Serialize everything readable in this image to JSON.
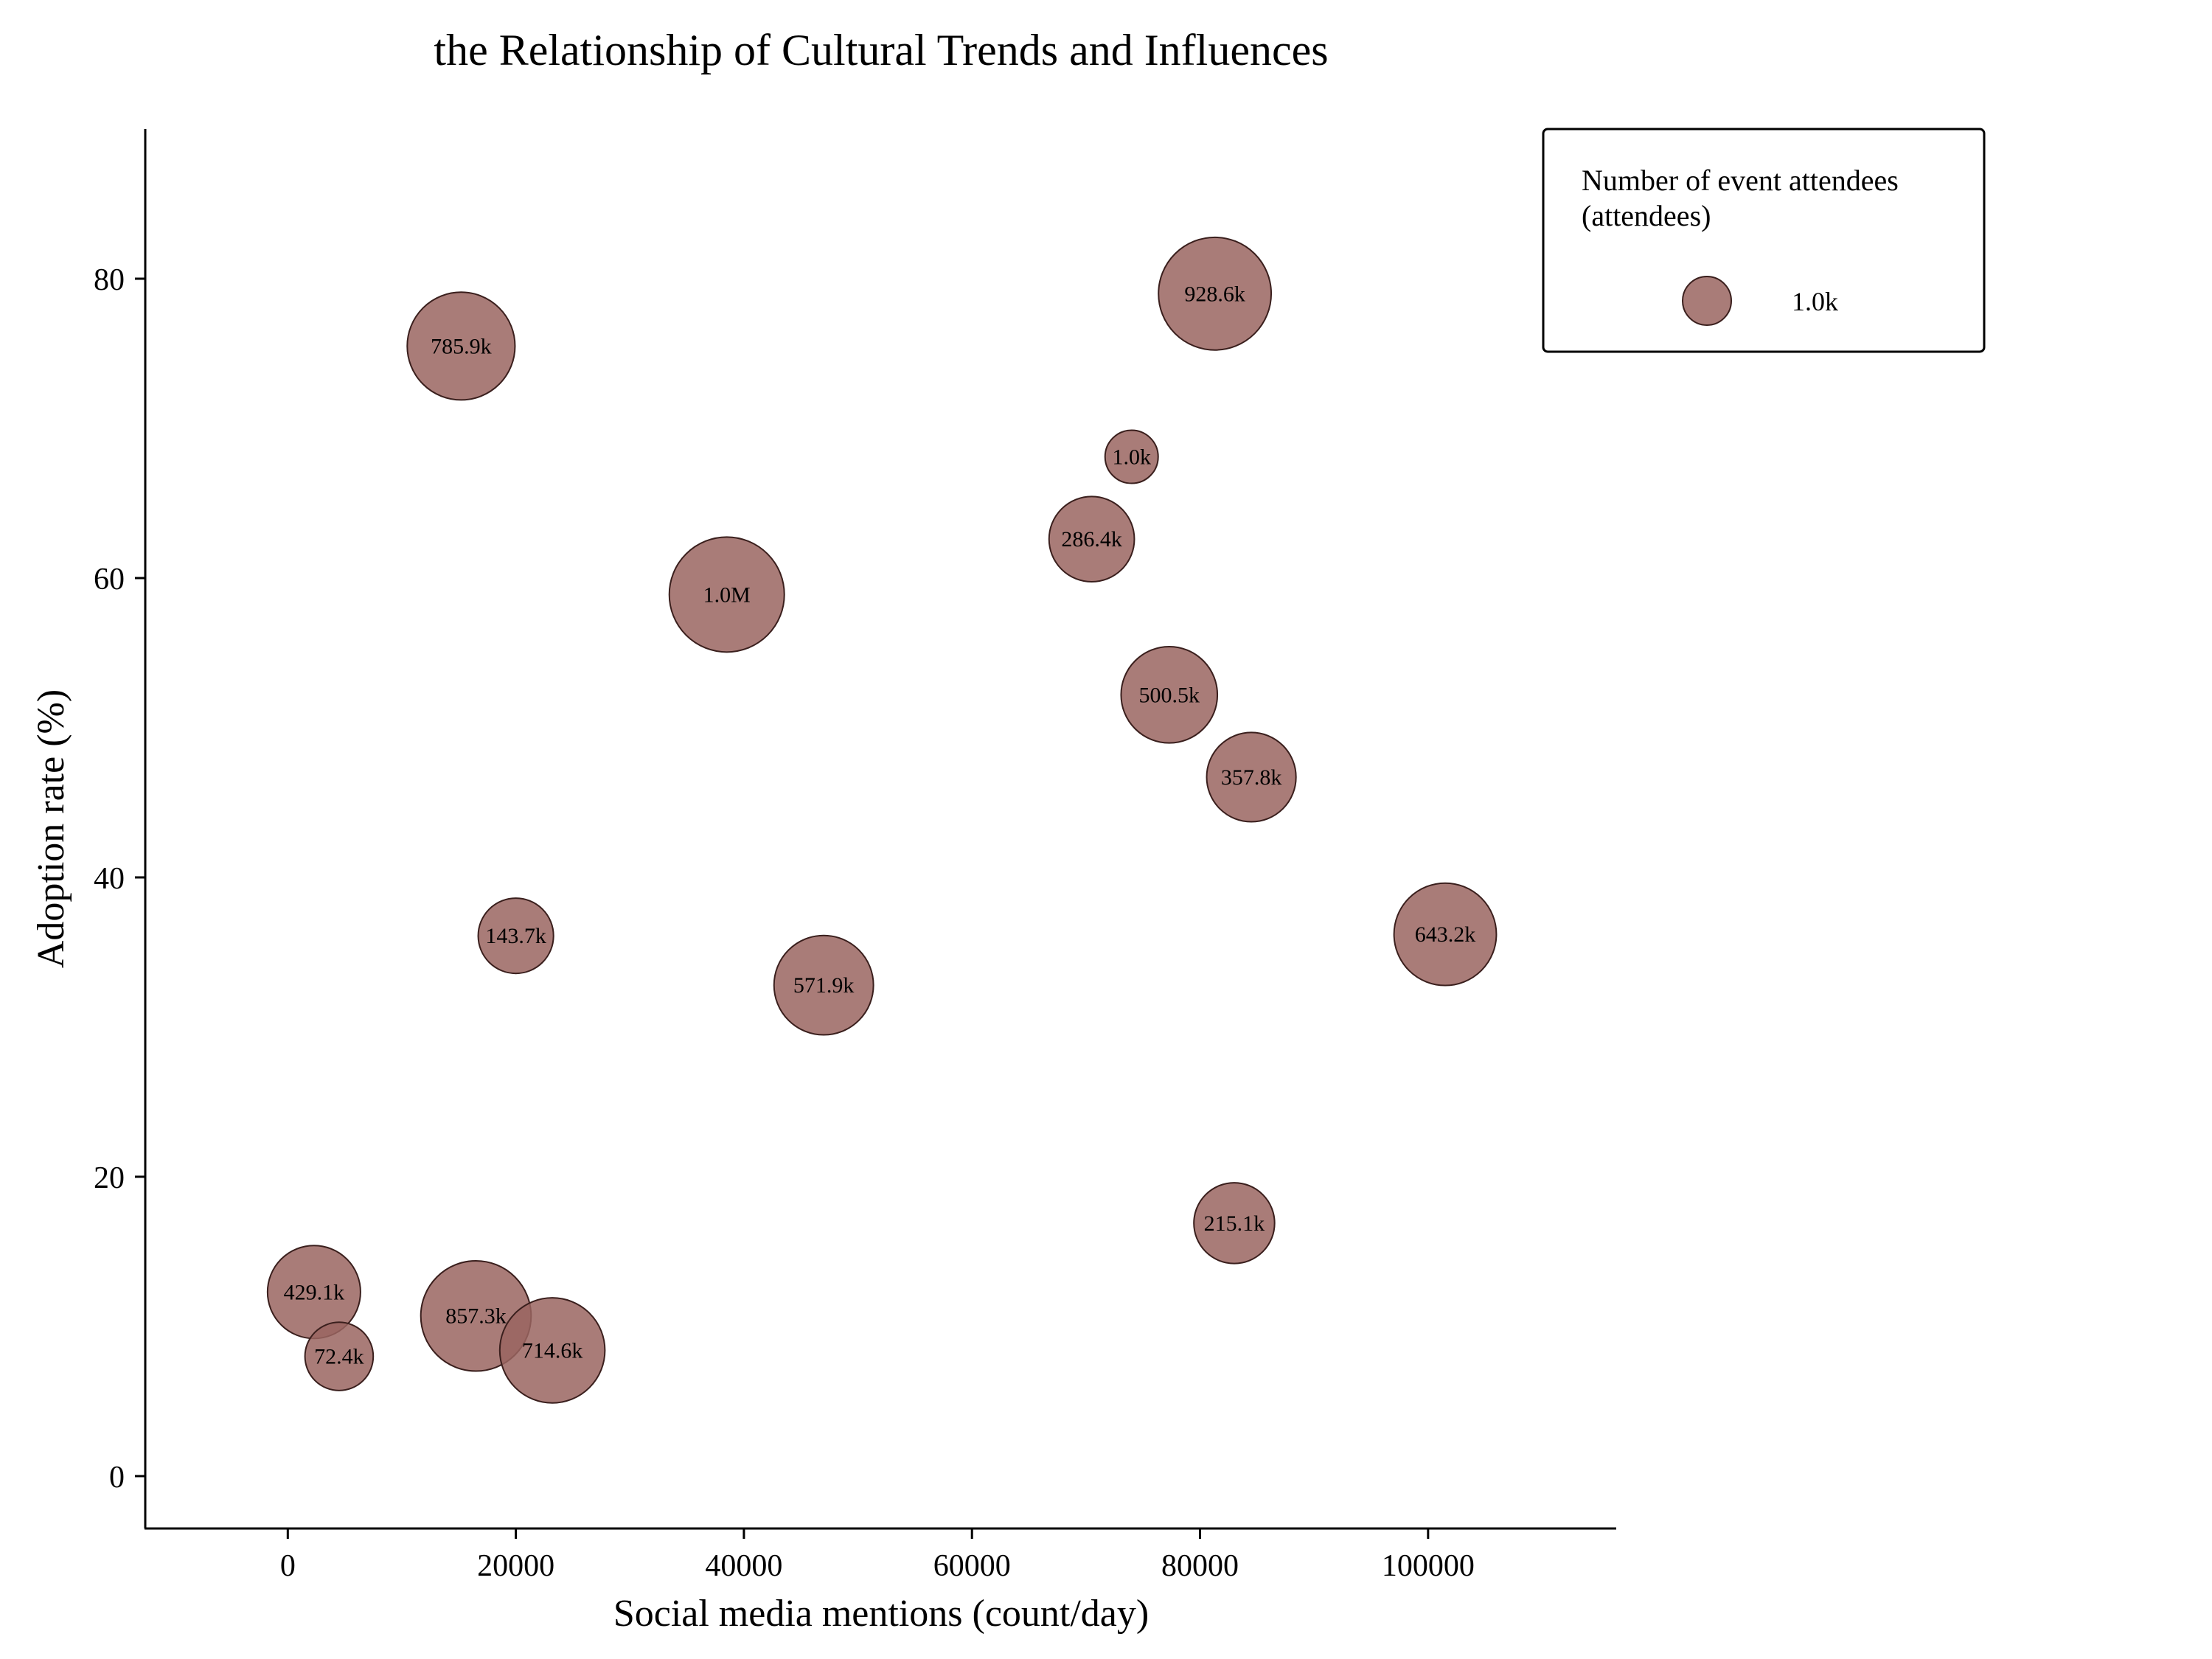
{
  "chart_data": {
    "type": "scatter",
    "title": "the Relationship of Cultural Trends and Influences",
    "xlabel": "Social media mentions (count/day)",
    "ylabel": "Adoption rate (%)",
    "xlim": [
      -12500,
      116500
    ],
    "ylim": [
      -3.5,
      90
    ],
    "xticks": [
      0,
      20000,
      40000,
      60000,
      80000,
      100000
    ],
    "yticks": [
      0,
      20,
      40,
      60,
      80
    ],
    "grid": false,
    "legend": {
      "title_line1": "Number of event attendees",
      "title_line2": "(attendees)",
      "entry_label": "1.0k",
      "placement": "top-right"
    },
    "marker_color": "#9a6560",
    "marker_edge_color": "#3a1f1d",
    "points": [
      {
        "x": 15200,
        "y": 75.5,
        "size": 785900,
        "label": "785.9k"
      },
      {
        "x": 81300,
        "y": 79.0,
        "size": 928600,
        "label": "928.6k"
      },
      {
        "x": 74000,
        "y": 68.1,
        "size": 1000,
        "label": "1.0k"
      },
      {
        "x": 70500,
        "y": 62.6,
        "size": 286400,
        "label": "286.4k"
      },
      {
        "x": 38500,
        "y": 58.9,
        "size": 1000000,
        "label": "1.0M"
      },
      {
        "x": 77300,
        "y": 52.2,
        "size": 500500,
        "label": "500.5k"
      },
      {
        "x": 84500,
        "y": 46.7,
        "size": 357800,
        "label": "357.8k"
      },
      {
        "x": 101500,
        "y": 36.2,
        "size": 643200,
        "label": "643.2k"
      },
      {
        "x": 20000,
        "y": 36.1,
        "size": 143700,
        "label": "143.7k"
      },
      {
        "x": 47000,
        "y": 32.8,
        "size": 571900,
        "label": "571.9k"
      },
      {
        "x": 83000,
        "y": 16.9,
        "size": 215100,
        "label": "215.1k"
      },
      {
        "x": 2300,
        "y": 12.3,
        "size": 429100,
        "label": "429.1k"
      },
      {
        "x": 16500,
        "y": 10.7,
        "size": 857300,
        "label": "857.3k"
      },
      {
        "x": 4500,
        "y": 8.0,
        "size": 72400,
        "label": "72.4k"
      },
      {
        "x": 23200,
        "y": 8.4,
        "size": 714600,
        "label": "714.6k"
      }
    ]
  }
}
